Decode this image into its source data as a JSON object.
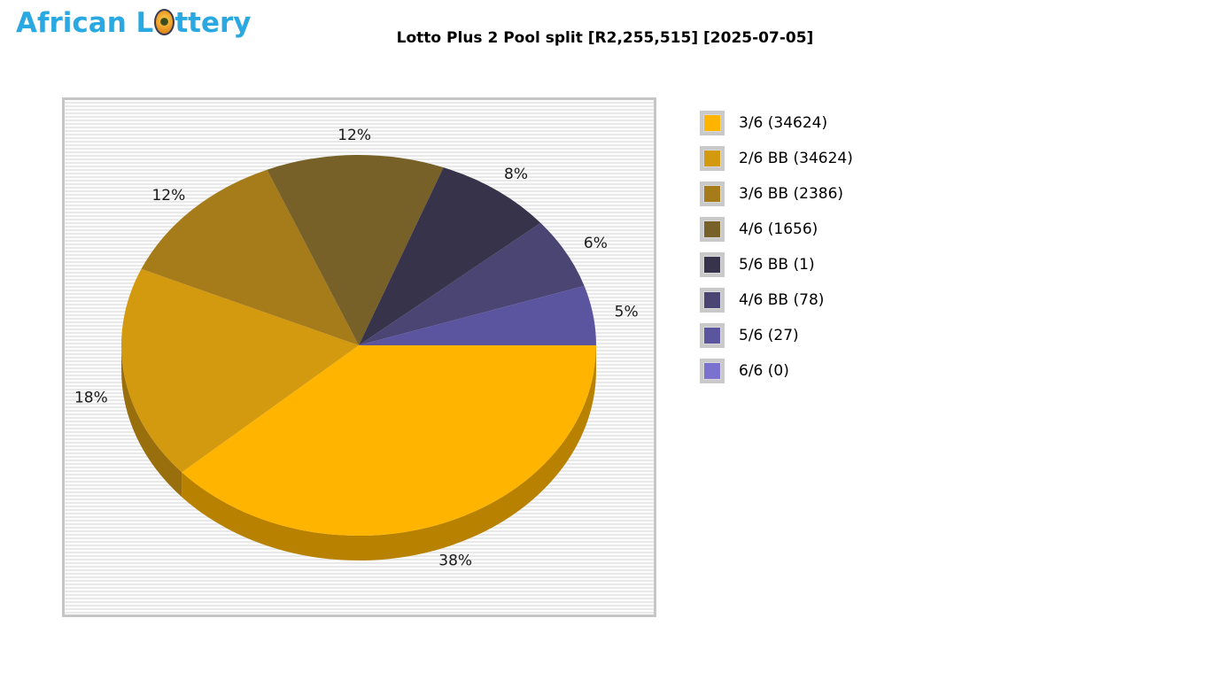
{
  "header": {
    "logo_part1": "African L",
    "logo_part2": "ttery",
    "logo_color": "#29a8e1",
    "title": "Lotto Plus 2 Pool split [R2,255,515] [2025-07-05]"
  },
  "chart_data": {
    "type": "pie",
    "style": "3d",
    "title": "Lotto Plus 2 Pool split [R2,255,515] [2025-07-05]",
    "total_pool": "R2,255,515",
    "draw_date": "2025-07-05",
    "start_angle_deg": 0,
    "direction": "clockwise",
    "legend_position": "right",
    "slices": [
      {
        "label": "3/6",
        "winners": 34624,
        "percent": 38,
        "color": "#ffb400"
      },
      {
        "label": "2/6 BB",
        "winners": 34624,
        "percent": 18,
        "color": "#d39a10"
      },
      {
        "label": "3/6 BB",
        "winners": 2386,
        "percent": 12,
        "color": "#a67c1a"
      },
      {
        "label": "4/6",
        "winners": 1656,
        "percent": 12,
        "color": "#776128"
      },
      {
        "label": "5/6 BB",
        "winners": 1,
        "percent": 8,
        "color": "#37334a"
      },
      {
        "label": "4/6 BB",
        "winners": 78,
        "percent": 6,
        "color": "#4a4573"
      },
      {
        "label": "5/6",
        "winners": 27,
        "percent": 5,
        "color": "#5b55a0"
      },
      {
        "label": "6/6",
        "winners": 0,
        "percent": 0,
        "color": "#7b72d0"
      }
    ]
  }
}
